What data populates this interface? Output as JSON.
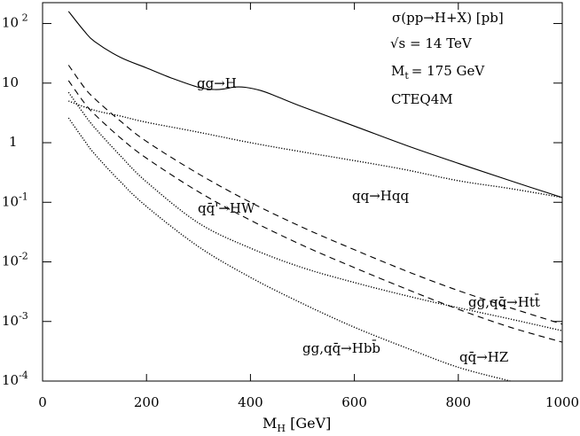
{
  "chart_data": {
    "type": "line",
    "title": "",
    "xlabel_main": "M",
    "xlabel_sub": "H",
    "xlabel_unit": " [GeV]",
    "ylabel": "",
    "xlim": [
      0,
      1000
    ],
    "ylim": [
      0.0001,
      200
    ],
    "yscale": "log",
    "grid": false,
    "x_ticks": [
      "0",
      "200",
      "400",
      "600",
      "800",
      "1000"
    ],
    "x_tick_values": [
      0,
      200,
      400,
      600,
      800,
      1000
    ],
    "y_ticks": [
      {
        "value": 100,
        "base": "10",
        "exp": " 2"
      },
      {
        "value": 10,
        "base": "10",
        "exp": ""
      },
      {
        "value": 1,
        "base": "1",
        "exp": ""
      },
      {
        "value": 0.1,
        "base": "10",
        "exp": "-1"
      },
      {
        "value": 0.01,
        "base": "10",
        "exp": "-2"
      },
      {
        "value": 0.001,
        "base": "10",
        "exp": "-3"
      },
      {
        "value": 0.0001,
        "base": "10",
        "exp": "-4"
      }
    ],
    "info": [
      "σ(pp→H+X) [pb]",
      "√s = 14 TeV",
      "M",
      "t",
      "= 175 GeV",
      "CTEQ4M"
    ],
    "series": [
      {
        "name": "gg→H",
        "style": "solid",
        "x": [
          50,
          80,
          100,
          150,
          200,
          250,
          300,
          330,
          350,
          370,
          390,
          420,
          450,
          500,
          600,
          700,
          800,
          900,
          1000
        ],
        "y": [
          160,
          75,
          50,
          27,
          18,
          12,
          8.5,
          7.8,
          8.0,
          8.6,
          8.5,
          7.5,
          6.0,
          4.0,
          1.9,
          0.9,
          0.45,
          0.23,
          0.12
        ]
      },
      {
        "name": "qq→Hqq",
        "style": "dotted",
        "x": [
          50,
          100,
          150,
          200,
          300,
          400,
          500,
          600,
          700,
          800,
          900,
          1000
        ],
        "y": [
          5.0,
          3.5,
          2.8,
          2.2,
          1.5,
          1.0,
          0.7,
          0.5,
          0.35,
          0.23,
          0.17,
          0.12
        ]
      },
      {
        "name": "qq̄'→HW",
        "style": "dashed",
        "x": [
          50,
          80,
          100,
          150,
          200,
          300,
          400,
          500,
          600,
          700,
          800,
          900,
          1000
        ],
        "y": [
          20,
          8.5,
          5.5,
          2.3,
          1.05,
          0.3,
          0.1,
          0.038,
          0.016,
          0.007,
          0.0033,
          0.0017,
          0.0009
        ]
      },
      {
        "name": "qq̄→HZ",
        "style": "dashed",
        "x": [
          50,
          80,
          100,
          150,
          200,
          300,
          400,
          500,
          600,
          700,
          800,
          900,
          1000
        ],
        "y": [
          11,
          4.7,
          3.0,
          1.2,
          0.55,
          0.15,
          0.05,
          0.019,
          0.008,
          0.0035,
          0.0016,
          0.0008,
          0.00045
        ]
      },
      {
        "name": "gg,qq̄→Htt̄",
        "style": "dotted",
        "x": [
          50,
          80,
          100,
          150,
          200,
          300,
          400,
          500,
          600,
          700,
          800,
          900,
          1000
        ],
        "y": [
          7,
          3.0,
          1.8,
          0.6,
          0.22,
          0.045,
          0.017,
          0.008,
          0.0045,
          0.0027,
          0.0017,
          0.0011,
          0.0007
        ]
      },
      {
        "name": "gg,qq̄→Hbb̄",
        "style": "dotted",
        "x": [
          50,
          80,
          100,
          150,
          200,
          300,
          400,
          500,
          600,
          700,
          800,
          900
        ],
        "y": [
          2.6,
          1.1,
          0.65,
          0.22,
          0.085,
          0.018,
          0.0055,
          0.002,
          0.0008,
          0.00036,
          0.00017,
          0.0001
        ]
      }
    ],
    "labels": {
      "ggH": "gg→H",
      "qqHqq": "qq→Hqq",
      "HW": "qq̄'→HW",
      "HZ": "qq̄→HZ",
      "Htt": "gg,qq̄→Htt̄",
      "Hbb": "gg,qq̄→Hbb̄"
    }
  }
}
